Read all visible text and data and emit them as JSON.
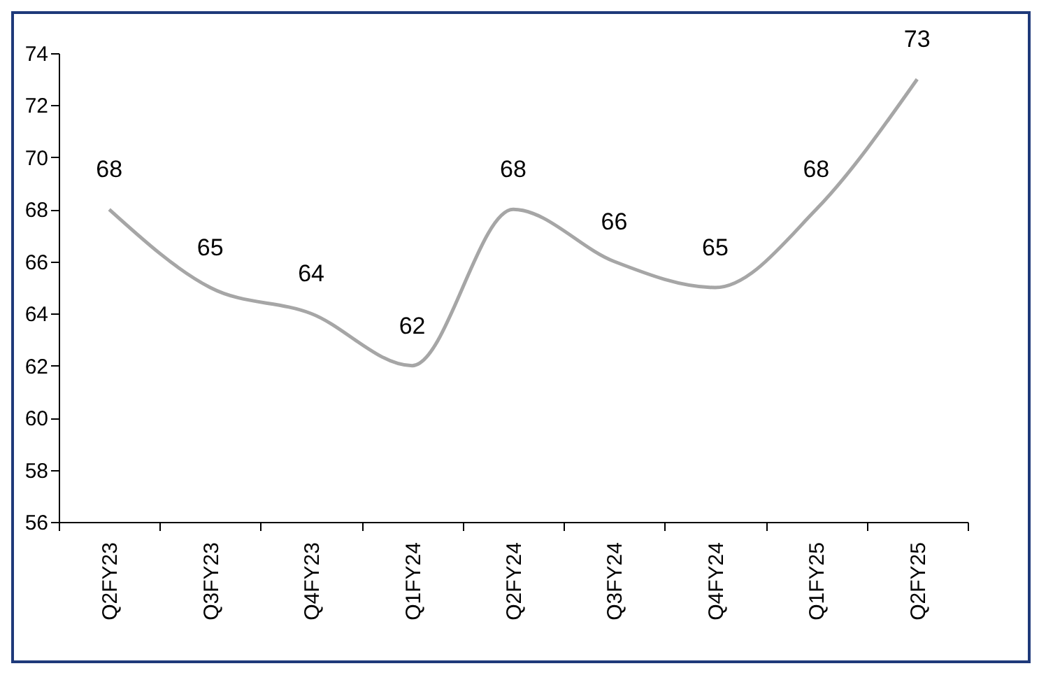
{
  "chart_data": {
    "type": "line",
    "categories": [
      "Q2FY23",
      "Q3FY23",
      "Q4FY23",
      "Q1FY24",
      "Q2FY24",
      "Q3FY24",
      "Q4FY24",
      "Q1FY25",
      "Q2FY25"
    ],
    "series": [
      {
        "color": "#a6a6a6",
        "values": [
          68,
          65,
          64,
          62,
          68,
          66,
          65,
          68,
          73
        ]
      }
    ],
    "ylim": [
      56,
      74
    ],
    "yticks": [
      56,
      58,
      60,
      62,
      64,
      66,
      68,
      70,
      72,
      74
    ],
    "grid": false,
    "marker": "none",
    "line_style": "solid",
    "data_labels": true
  }
}
